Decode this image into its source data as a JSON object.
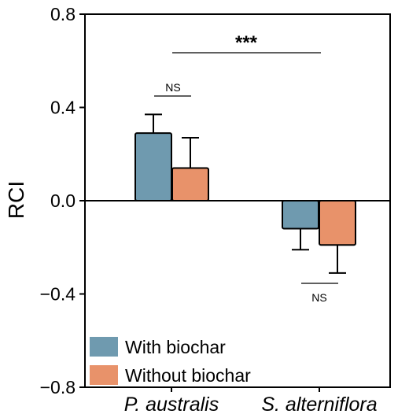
{
  "chart_data": {
    "type": "bar",
    "categories": [
      "P. australis",
      "S. alterniflora"
    ],
    "series": [
      {
        "name": "With biochar",
        "values": [
          0.29,
          -0.12
        ],
        "errors": [
          0.08,
          0.09
        ],
        "color": "#6f9aaf"
      },
      {
        "name": "Without biochar",
        "values": [
          0.14,
          -0.19
        ],
        "errors": [
          0.13,
          0.12
        ],
        "color": "#e8926a"
      }
    ],
    "ylabel": "RCI",
    "ylim": [
      -0.8,
      0.8
    ],
    "yticks": [
      "0.8",
      "0.4",
      "0.0",
      "−0.4",
      "−0.8"
    ],
    "ytick_values": [
      0.8,
      0.4,
      0.0,
      -0.4,
      -0.8
    ],
    "grid": false,
    "legend_position": "bottom-left",
    "annotations": {
      "within_group_1": "NS",
      "within_group_2": "NS",
      "between_groups": "***"
    }
  }
}
